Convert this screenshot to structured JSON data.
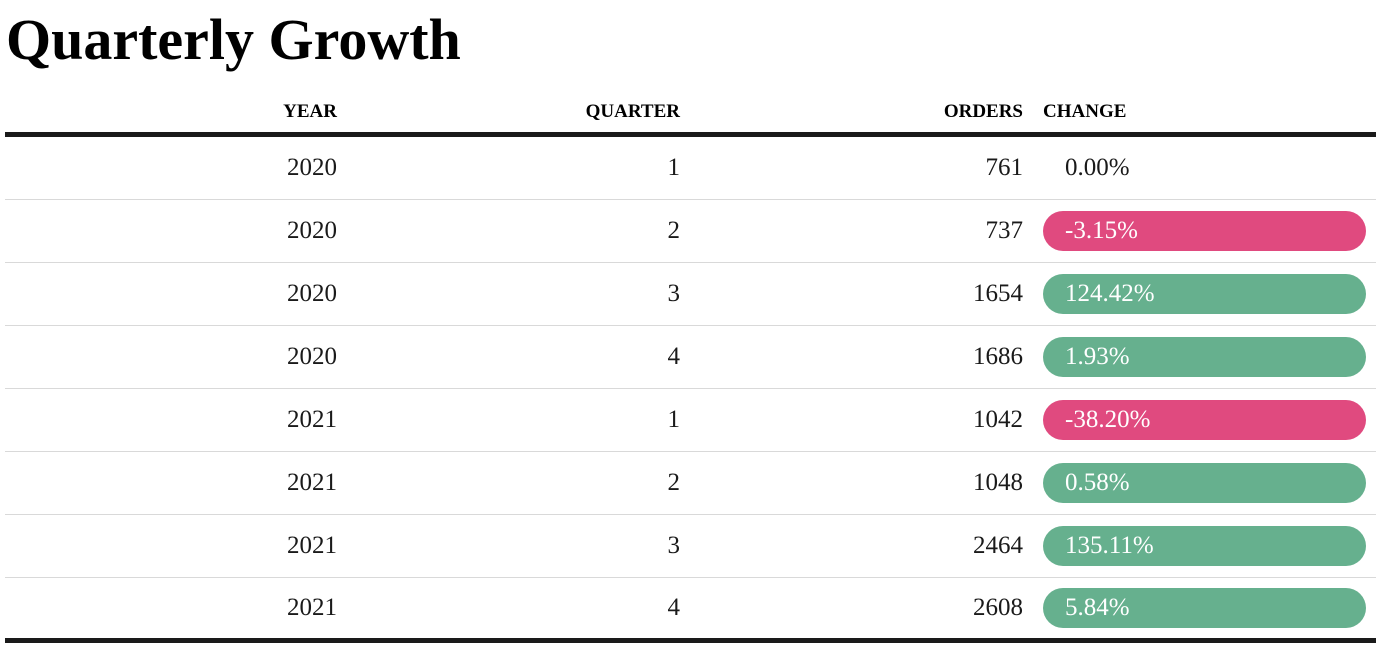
{
  "title": "Quarterly Growth",
  "columns": {
    "year": "YEAR",
    "quarter": "QUARTER",
    "orders": "ORDERS",
    "change": "CHANGE"
  },
  "colors": {
    "positive": "#66b08e",
    "negative": "#e04a7f"
  },
  "rows": [
    {
      "year": "2020",
      "quarter": "1",
      "orders": "761",
      "change": "0.00%",
      "status": "neutral"
    },
    {
      "year": "2020",
      "quarter": "2",
      "orders": "737",
      "change": "-3.15%",
      "status": "negative"
    },
    {
      "year": "2020",
      "quarter": "3",
      "orders": "1654",
      "change": "124.42%",
      "status": "positive"
    },
    {
      "year": "2020",
      "quarter": "4",
      "orders": "1686",
      "change": "1.93%",
      "status": "positive"
    },
    {
      "year": "2021",
      "quarter": "1",
      "orders": "1042",
      "change": "-38.20%",
      "status": "negative"
    },
    {
      "year": "2021",
      "quarter": "2",
      "orders": "1048",
      "change": "0.58%",
      "status": "positive"
    },
    {
      "year": "2021",
      "quarter": "3",
      "orders": "2464",
      "change": "135.11%",
      "status": "positive"
    },
    {
      "year": "2021",
      "quarter": "4",
      "orders": "2608",
      "change": "5.84%",
      "status": "positive"
    }
  ]
}
